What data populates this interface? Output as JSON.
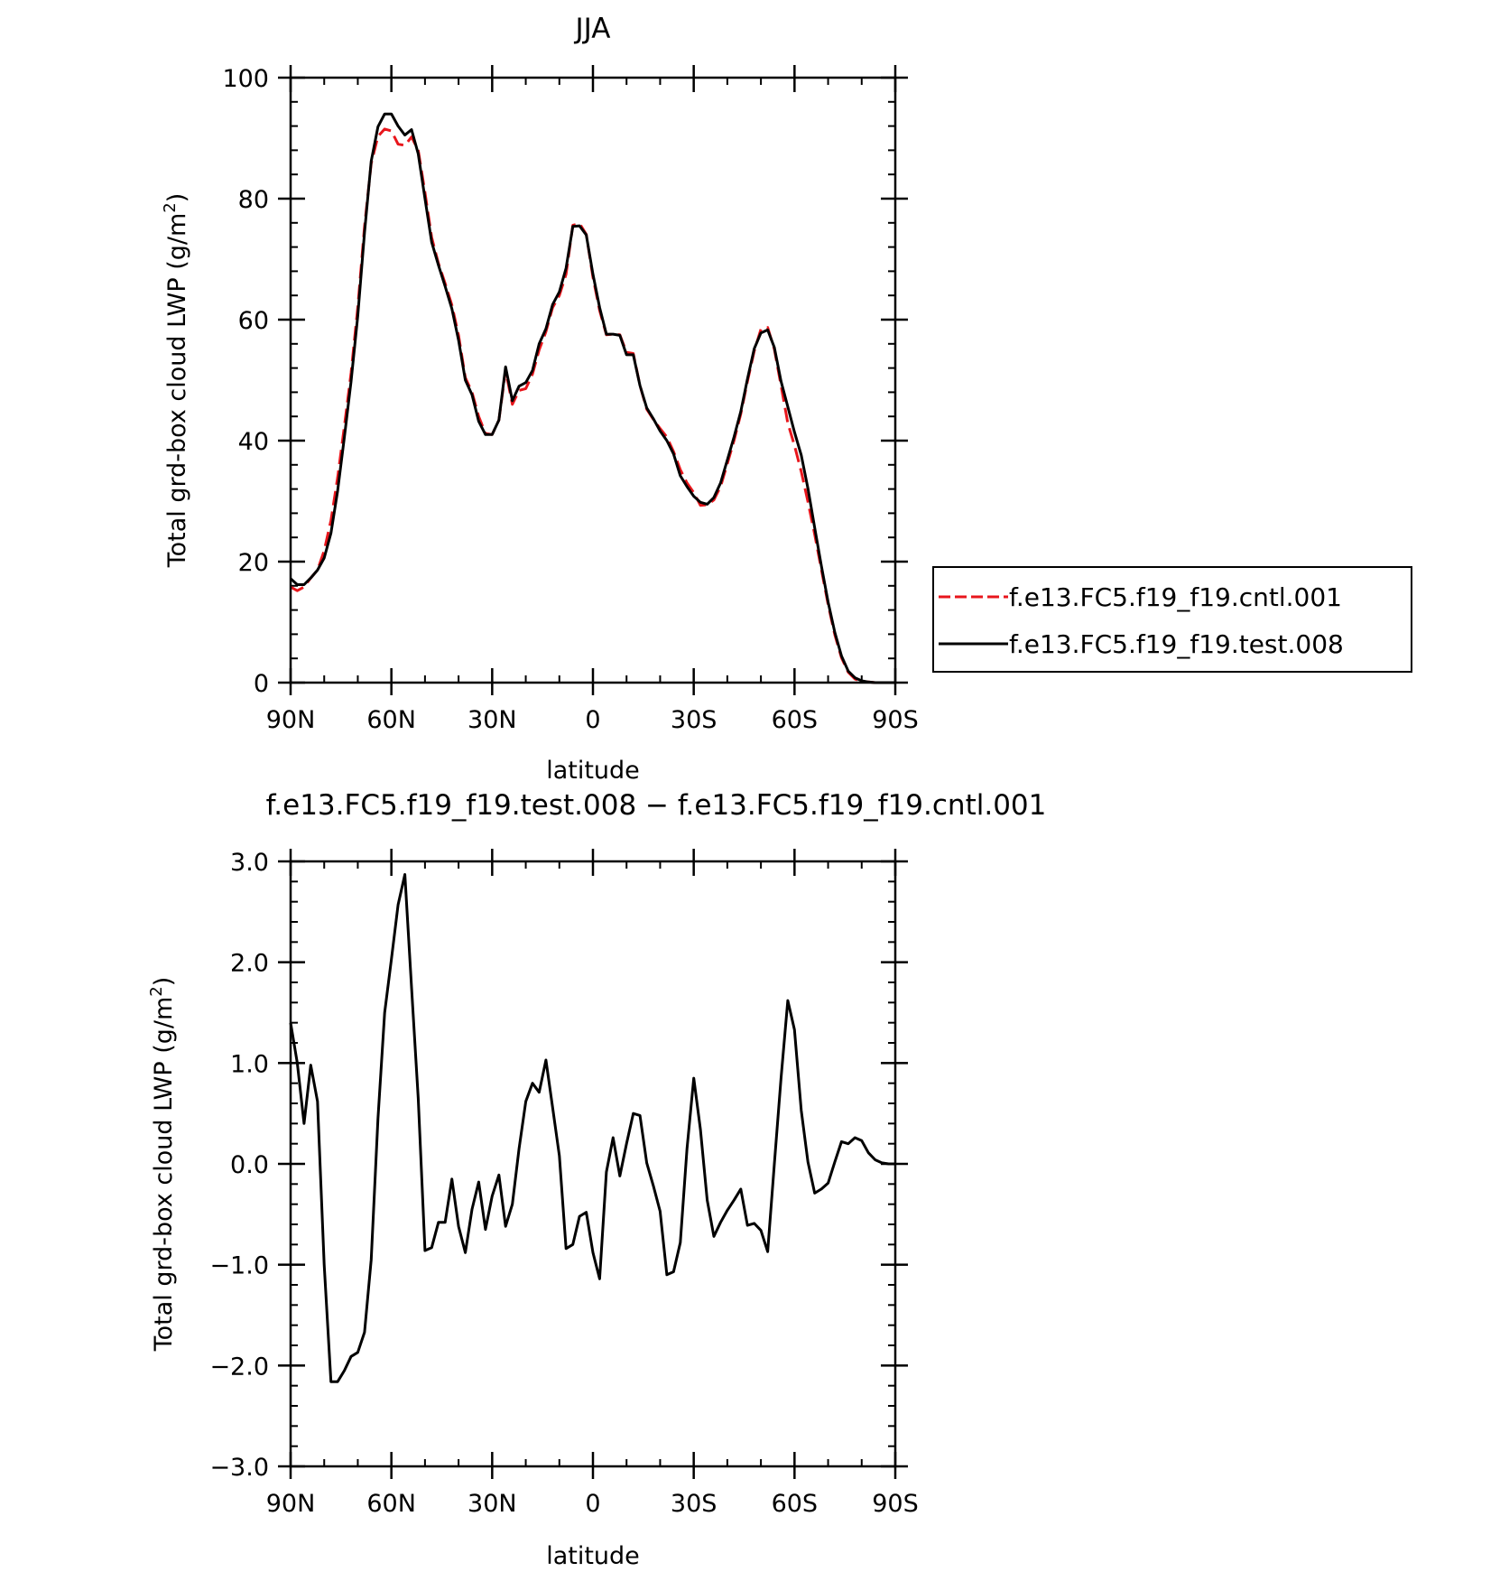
{
  "chart_data": [
    {
      "type": "line",
      "title": "JJA",
      "xlabel": "latitude",
      "ylabel": "Total grd-box cloud LWP (g/m²)",
      "ylabel_parts": {
        "main": "Total grd-box cloud LWP (g/m",
        "sup": "2",
        "close": ")"
      },
      "xlim": [
        90,
        -90
      ],
      "ylim": [
        0,
        100
      ],
      "xticks": [
        90,
        60,
        30,
        0,
        -30,
        -60,
        -90
      ],
      "xtick_labels": [
        "90N",
        "60N",
        "30N",
        "0",
        "30S",
        "60S",
        "90S"
      ],
      "yticks": [
        0,
        20,
        40,
        60,
        80,
        100
      ],
      "ytick_labels": [
        "0",
        "20",
        "40",
        "60",
        "80",
        "100"
      ],
      "grid": false,
      "legend_position": "right",
      "series": [
        {
          "name": "f.e13.FC5.f19_f19.cntl.001",
          "color": "#e8161c",
          "dash": "dashed",
          "x": [
            90,
            88,
            86,
            84,
            82,
            80,
            78,
            76,
            74,
            72,
            70,
            68,
            66,
            64,
            62,
            60,
            58,
            56,
            54,
            52,
            50,
            48,
            46,
            44,
            42,
            40,
            38,
            36,
            34,
            32,
            30,
            28,
            26,
            24,
            22,
            20,
            18,
            16,
            14,
            12,
            10,
            8,
            6,
            4,
            2,
            0,
            -2,
            -4,
            -6,
            -8,
            -10,
            -12,
            -14,
            -16,
            -18,
            -20,
            -22,
            -24,
            -26,
            -28,
            -30,
            -32,
            -34,
            -36,
            -38,
            -40,
            -42,
            -44,
            -46,
            -48,
            -50,
            -52,
            -54,
            -56,
            -58,
            -60,
            -62,
            -64,
            -66,
            -68,
            -70,
            -72,
            -74,
            -76,
            -78,
            -80,
            -82,
            -84,
            -86,
            -88,
            -90
          ],
          "values": [
            15.8,
            15.2,
            15.8,
            17.3,
            18.6,
            21.8,
            26.8,
            33.9,
            42.4,
            51.2,
            62.0,
            75.4,
            85.8,
            90.3,
            91.5,
            91.2,
            89.0,
            88.8,
            90.2,
            88.0,
            81.0,
            73.6,
            69.3,
            66.0,
            62.4,
            57.4,
            50.4,
            48.0,
            44.0,
            41.2,
            41.0,
            43.4,
            51.6,
            46.0,
            48.3,
            48.6,
            51.0,
            55.0,
            58.0,
            62.0,
            64.0,
            67.5,
            75.6,
            75.9,
            74.1,
            67.0,
            61.5,
            57.5,
            57.6,
            57.5,
            54.6,
            54.4,
            49.1,
            45.2,
            43.5,
            42.0,
            40.6,
            38.2,
            35.2,
            33.0,
            31.4,
            29.3,
            29.4,
            30.2,
            32.4,
            36.2,
            40.0,
            44.4,
            49.8,
            54.8,
            58.4,
            58.7,
            55.1,
            49.1,
            42.9,
            39.2,
            34.9,
            29.9,
            24.5,
            18.7,
            12.9,
            7.9,
            4.1,
            1.7,
            0.6,
            0.2,
            0.1,
            0.0,
            0.0,
            0.0,
            0.0
          ]
        },
        {
          "name": "f.e13.FC5.f19_f19.test.008",
          "color": "#000000",
          "dash": "solid",
          "x": [
            90,
            88,
            86,
            84,
            82,
            80,
            78,
            76,
            74,
            72,
            70,
            68,
            66,
            64,
            62,
            60,
            58,
            56,
            54,
            52,
            50,
            48,
            46,
            44,
            42,
            40,
            38,
            36,
            34,
            32,
            30,
            28,
            26,
            24,
            22,
            20,
            18,
            16,
            14,
            12,
            10,
            8,
            6,
            4,
            2,
            0,
            -2,
            -4,
            -6,
            -8,
            -10,
            -12,
            -14,
            -16,
            -18,
            -20,
            -22,
            -24,
            -26,
            -28,
            -30,
            -32,
            -34,
            -36,
            -38,
            -40,
            -42,
            -44,
            -46,
            -48,
            -50,
            -52,
            -54,
            -56,
            -58,
            -60,
            -62,
            -64,
            -66,
            -68,
            -70,
            -72,
            -74,
            -76,
            -78,
            -80,
            -82,
            -84,
            -86,
            -88,
            -90
          ],
          "values": [
            17.2,
            16.2,
            16.2,
            17.3,
            18.6,
            20.6,
            24.7,
            31.7,
            40.6,
            49.8,
            60.6,
            74.4,
            86.2,
            91.9,
            94.0,
            94.0,
            92.0,
            90.5,
            91.4,
            87.4,
            80.0,
            72.8,
            69.0,
            65.5,
            61.8,
            56.6,
            50.0,
            47.6,
            43.2,
            41.0,
            41.0,
            43.4,
            52.2,
            46.6,
            49.0,
            49.6,
            51.6,
            56.0,
            58.5,
            62.5,
            64.6,
            68.5,
            75.4,
            75.5,
            74.0,
            67.5,
            62.0,
            57.6,
            57.6,
            57.4,
            54.2,
            54.2,
            49.1,
            45.4,
            43.6,
            41.6,
            40.0,
            37.8,
            34.2,
            32.4,
            30.8,
            29.8,
            29.5,
            30.6,
            33.0,
            36.8,
            40.6,
            44.8,
            50.2,
            55.2,
            57.8,
            58.3,
            55.4,
            49.8,
            45.6,
            41.4,
            37.6,
            32.1,
            25.6,
            19.3,
            13.3,
            8.3,
            4.4,
            1.9,
            0.8,
            0.3,
            0.1,
            0.0,
            0.0,
            0.0,
            0.0
          ]
        }
      ],
      "legend": [
        {
          "label": "f.e13.FC5.f19_f19.cntl.001",
          "color": "#e8161c",
          "dash": "dashed"
        },
        {
          "label": "f.e13.FC5.f19_f19.test.008",
          "color": "#000000",
          "dash": "solid"
        }
      ]
    },
    {
      "type": "line",
      "title": "f.e13.FC5.f19_f19.test.008 − f.e13.FC5.f19_f19.cntl.001",
      "xlabel": "latitude",
      "ylabel": "Total grd-box cloud LWP (g/m²)",
      "ylabel_parts": {
        "main": "Total grd-box cloud LWP (g/m",
        "sup": "2",
        "close": ")"
      },
      "xlim": [
        90,
        -90
      ],
      "ylim": [
        -3.0,
        3.0
      ],
      "xticks": [
        90,
        60,
        30,
        0,
        -30,
        -60,
        -90
      ],
      "xtick_labels": [
        "90N",
        "60N",
        "30N",
        "0",
        "30S",
        "60S",
        "90S"
      ],
      "yticks": [
        -3,
        -2,
        -1,
        0,
        1,
        2,
        3
      ],
      "ytick_labels": [
        "−3.0",
        "−2.0",
        "−1.0",
        "0.0",
        "1.0",
        "2.0",
        "3.0"
      ],
      "grid": false,
      "series": [
        {
          "color": "#000000",
          "dash": "solid",
          "x": [
            90,
            88,
            86,
            84,
            82,
            80,
            78,
            76,
            74,
            72,
            70,
            68,
            66,
            64,
            62,
            60,
            58,
            56,
            54,
            52,
            50,
            48,
            46,
            44,
            42,
            40,
            38,
            36,
            34,
            32,
            30,
            28,
            26,
            24,
            22,
            20,
            18,
            16,
            14,
            12,
            10,
            8,
            6,
            4,
            2,
            0,
            -2,
            -4,
            -6,
            -8,
            -10,
            -12,
            -14,
            -16,
            -18,
            -20,
            -22,
            -24,
            -26,
            -28,
            -30,
            -32,
            -34,
            -36,
            -38,
            -40,
            -42,
            -44,
            -46,
            -48,
            -50,
            -52,
            -54,
            -56,
            -58,
            -60,
            -62,
            -64,
            -66,
            -68,
            -70,
            -72,
            -74,
            -76,
            -78,
            -80,
            -82,
            -84,
            -86,
            -88,
            -90
          ],
          "values": [
            1.4,
            1.0,
            0.4,
            0.98,
            0.62,
            -1.0,
            -2.16,
            -2.16,
            -2.05,
            -1.91,
            -1.87,
            -1.67,
            -0.95,
            0.45,
            1.5,
            2.03,
            2.57,
            2.87,
            1.75,
            0.65,
            -0.86,
            -0.83,
            -0.58,
            -0.58,
            -0.15,
            -0.62,
            -0.88,
            -0.45,
            -0.18,
            -0.65,
            -0.32,
            -0.11,
            -0.62,
            -0.4,
            0.15,
            0.62,
            0.8,
            0.71,
            1.03,
            0.56,
            0.08,
            -0.84,
            -0.8,
            -0.52,
            -0.48,
            -0.88,
            -1.14,
            -0.08,
            0.26,
            -0.12,
            0.2,
            0.5,
            0.48,
            0.01,
            -0.22,
            -0.47,
            -1.1,
            -1.07,
            -0.78,
            0.15,
            0.85,
            0.34,
            -0.36,
            -0.72,
            -0.58,
            -0.46,
            -0.36,
            -0.25,
            -0.61,
            -0.59,
            -0.66,
            -0.87,
            0.0,
            0.85,
            1.62,
            1.33,
            0.53,
            0.02,
            -0.29,
            -0.25,
            -0.19,
            0.02,
            0.22,
            0.2,
            0.26,
            0.23,
            0.11,
            0.04,
            0.01,
            0.0,
            0.0
          ]
        }
      ]
    }
  ]
}
